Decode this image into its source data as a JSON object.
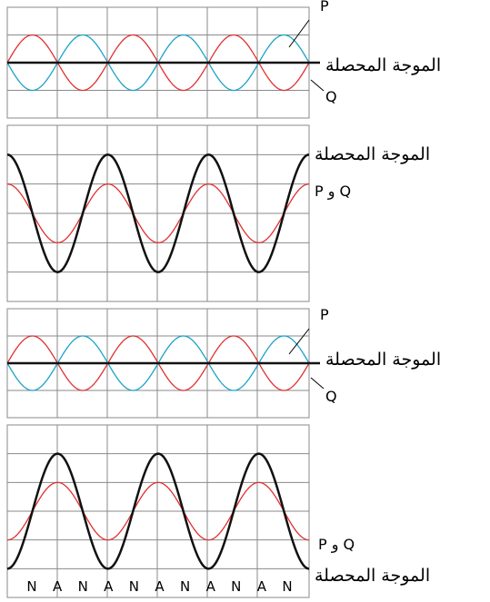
{
  "colors": {
    "grid": "#8a8a8a",
    "wave_p": "#e03030",
    "wave_q": "#1aa3c8",
    "resultant": "#111111",
    "background": "#ffffff"
  },
  "labels": {
    "resultant_wave": "الموجة المحصلة",
    "p": "P",
    "q": "Q",
    "p_and_q": "P و Q"
  },
  "nodes_antinodes": [
    "N",
    "A",
    "N",
    "A",
    "N",
    "A",
    "N",
    "A",
    "N",
    "A",
    "N"
  ],
  "panels": [
    {
      "id": "panel-1",
      "description_kind": "destructive",
      "p_amplitude": 1,
      "q_amplitude": -1,
      "resultant_amplitude": 0,
      "cycles": 3
    },
    {
      "id": "panel-2",
      "description_kind": "constructive",
      "p_amplitude": 1,
      "resultant_amplitude": 2,
      "cycles": 3,
      "phase": "cos"
    },
    {
      "id": "panel-3",
      "description_kind": "destructive",
      "p_amplitude": 1,
      "q_amplitude": -1,
      "resultant_amplitude": 0,
      "cycles": 3
    },
    {
      "id": "panel-4",
      "description_kind": "constructive",
      "p_amplitude": 1,
      "resultant_amplitude": 2,
      "cycles": 3,
      "phase": "neg-cos"
    }
  ]
}
